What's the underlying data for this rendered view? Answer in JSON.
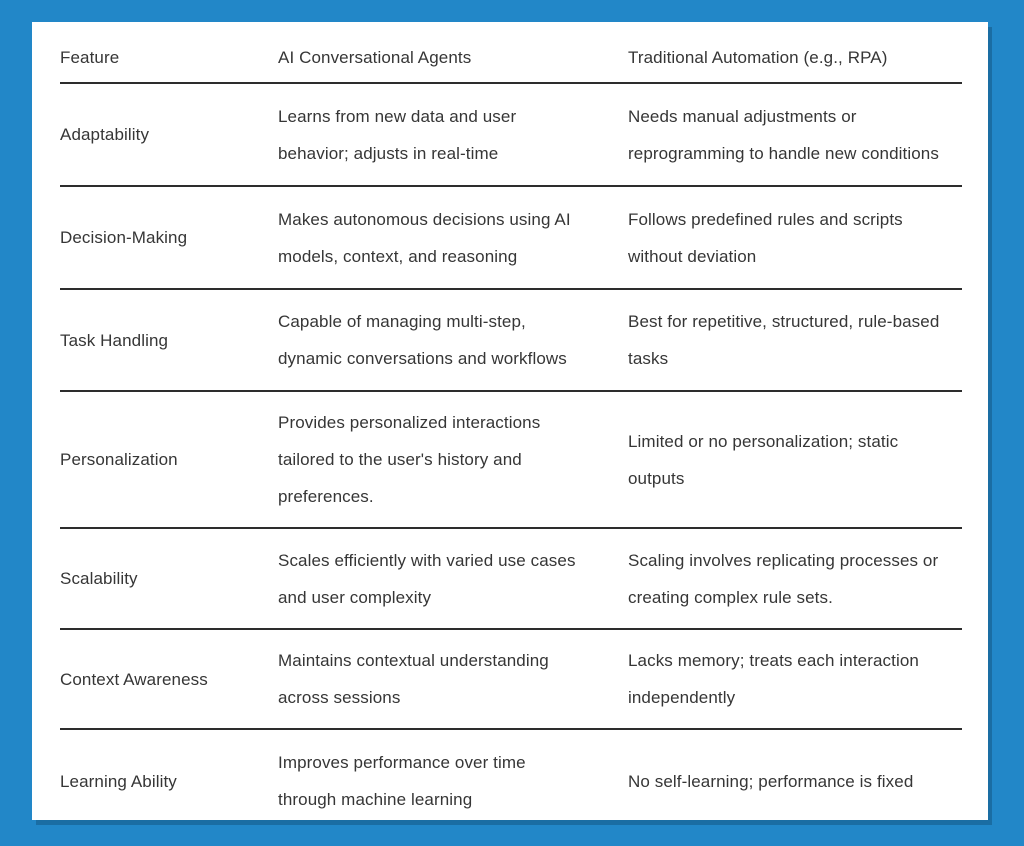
{
  "page": {
    "background_color": "#2287c8",
    "card_color": "#ffffff",
    "rule_color": "#2d2d2d",
    "text_color": "#363636",
    "shadow_color": "#1a6da3"
  },
  "table": {
    "columns": [
      "Feature",
      "AI Conversational Agents",
      "Traditional Automation (e.g., RPA)"
    ],
    "rows": [
      {
        "feature": "Adaptability",
        "ai": "Learns from new data and user\nbehavior; adjusts in real-time",
        "rpa": "Needs manual adjustments or\nreprogramming to handle new conditions"
      },
      {
        "feature": "Decision-Making",
        "ai": "Makes autonomous decisions using AI\nmodels, context, and reasoning",
        "rpa": "Follows predefined rules and scripts\nwithout deviation"
      },
      {
        "feature": "Task Handling",
        "ai": "Capable of managing multi-step,\ndynamic conversations and workflows",
        "rpa": "Best for repetitive, structured, rule-based\ntasks"
      },
      {
        "feature": "Personalization",
        "ai": "Provides personalized interactions\ntailored to the user's history and\npreferences.",
        "rpa": "Limited or no personalization; static\noutputs"
      },
      {
        "feature": "Scalability",
        "ai": "Scales efficiently with varied use cases\nand user complexity",
        "rpa": "Scaling involves replicating processes or\ncreating complex rule sets."
      },
      {
        "feature": "Context Awareness",
        "ai": "Maintains contextual understanding\nacross sessions",
        "rpa": "Lacks memory; treats each interaction\nindependently"
      },
      {
        "feature": "Learning Ability",
        "ai": "Improves performance over time\nthrough machine learning",
        "rpa": "No self-learning; performance is fixed"
      }
    ]
  }
}
